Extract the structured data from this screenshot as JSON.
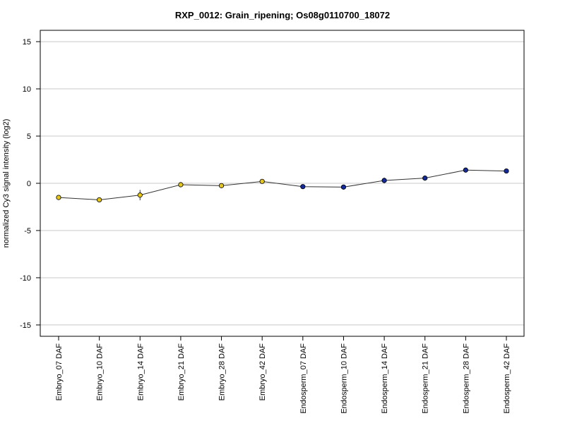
{
  "chart_data": {
    "type": "line",
    "title": "RXP_0012: Grain_ripening; Os08g0110700_18072",
    "xlabel": "",
    "ylabel": "normalized Cy3 signal intensity (log2)",
    "ylim": [
      -16.2,
      16.2
    ],
    "yticks": [
      15,
      10,
      5,
      0,
      -5,
      -10,
      -15
    ],
    "ytick_labels": [
      "15",
      "10",
      "5",
      "0",
      "-5",
      "-10",
      "-15"
    ],
    "grid": true,
    "categories": [
      "Embryo_07 DAF",
      "Embryo_10 DAF",
      "Embryo_14 DAF",
      "Embryo_21 DAF",
      "Embryo_28 DAF",
      "Embryo_42 DAF",
      "Endosperm_07 DAF",
      "Endosperm_10 DAF",
      "Endosperm_14 DAF",
      "Endosperm_21 DAF",
      "Endosperm_28 DAF",
      "Endosperm_42 DAF"
    ],
    "series": [
      {
        "values": [
          -1.5,
          -1.75,
          -1.25,
          -0.15,
          -0.25,
          0.2,
          -0.35,
          -0.4,
          0.3,
          0.55,
          1.4,
          1.3
        ],
        "errors": [
          0.1,
          0.25,
          0.55,
          0.1,
          0.1,
          0.1,
          0.1,
          0.1,
          0.3,
          0.1,
          0.1,
          0.1
        ],
        "marker_colors": [
          "#e5c61d",
          "#e5c61d",
          "#e5c61d",
          "#e5c61d",
          "#e5c61d",
          "#e5c61d",
          "#142a99",
          "#142a99",
          "#142a99",
          "#142a99",
          "#142a99",
          "#142a99"
        ]
      }
    ]
  }
}
